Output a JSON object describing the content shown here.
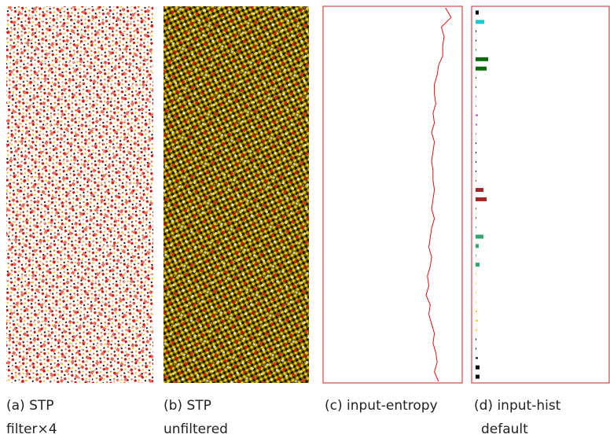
{
  "panels": [
    {
      "caption": [
        "(a) STP",
        "filter×4"
      ]
    },
    {
      "caption": [
        "(b) STP",
        "unfiltered"
      ]
    },
    {
      "caption": [
        "(c) input-entropy"
      ]
    },
    {
      "caption": [
        "(d) input-hist",
        "default"
      ]
    }
  ],
  "chart_data": [
    {
      "type": "line",
      "color": "#e01010",
      "xlim": [
        0,
        1
      ],
      "values": [
        0.88,
        0.92,
        0.85,
        0.87,
        0.86,
        0.86,
        0.83,
        0.82,
        0.8,
        0.8,
        0.81,
        0.79,
        0.8,
        0.78,
        0.8,
        0.79,
        0.78,
        0.79,
        0.79,
        0.8,
        0.79,
        0.78,
        0.8,
        0.78,
        0.77,
        0.76,
        0.78,
        0.77,
        0.75,
        0.76,
        0.74,
        0.77,
        0.76,
        0.78,
        0.8,
        0.79,
        0.81,
        0.82,
        0.8,
        0.83
      ]
    },
    {
      "type": "bar",
      "xlim": [
        0,
        170
      ],
      "values": [
        4,
        11,
        1,
        1,
        1,
        16,
        14,
        1,
        1,
        1,
        1,
        3,
        2,
        1,
        1,
        1,
        1,
        1,
        1,
        10,
        14,
        1,
        1,
        1,
        10,
        4,
        1,
        5,
        1,
        1,
        1,
        1,
        2,
        3,
        2,
        1,
        1,
        3,
        5,
        5
      ],
      "colors": [
        "#000000",
        "#22c4d8",
        "#000000",
        "#000000",
        "#0a6a0a",
        "#0a6a0a",
        "#0a6a0a",
        "#0a6a0a",
        "#0a6a0a",
        "#d040b0",
        "#d040b0",
        "#d040b0",
        "#d040b0",
        "#d040b0",
        "#000000",
        "#000000",
        "#000000",
        "#000000",
        "#a02828",
        "#a02828",
        "#a02828",
        "#a02828",
        "#a02828",
        "#2fa870",
        "#2fa870",
        "#2fa870",
        "#2fa870",
        "#2fa870",
        "#f0d020",
        "#f0d020",
        "#f0d020",
        "#f0d020",
        "#f0d020",
        "#f0d020",
        "#f0d020",
        "#000000",
        "#000000",
        "#000000",
        "#000000",
        "#000000"
      ]
    }
  ]
}
